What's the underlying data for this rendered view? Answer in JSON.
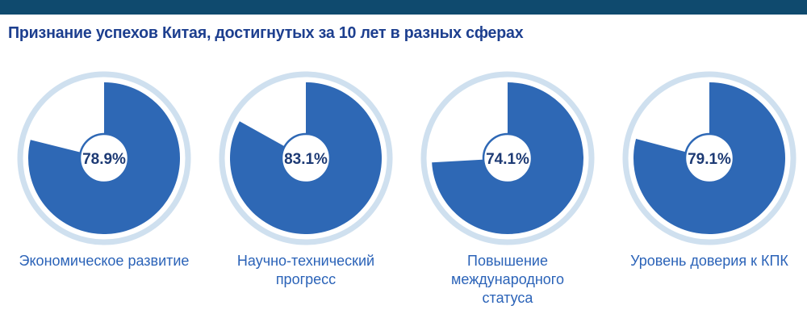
{
  "title": "Признание успехов Китая, достигнутых за 10 лет в разных сферах",
  "colors": {
    "band": "#0f4a6e",
    "title": "#1d3f8f",
    "slice": "#2e68b5",
    "ring": "#cfe0ef",
    "caption": "#2b63b8",
    "value": "#1d3a74"
  },
  "chart_data": {
    "type": "pie",
    "title": "Признание успехов Китая, достигнутых за 10 лет в разных сферах",
    "unit": "%",
    "categories": [
      "Экономическое развитие",
      "Научно-технический прогресс",
      "Повышение международного статуса",
      "Уровень доверия к КПК"
    ],
    "values": [
      78.9,
      83.1,
      74.1,
      79.1
    ],
    "value_labels": [
      "78.9%",
      "83.1%",
      "74.1%",
      "79.1%"
    ],
    "caption_lines": [
      [
        "Экономическое развитие"
      ],
      [
        "Научно-технический",
        "прогресс"
      ],
      [
        "Повышение",
        "международного",
        "статуса"
      ],
      [
        "Уровень доверия к КПК"
      ]
    ]
  }
}
